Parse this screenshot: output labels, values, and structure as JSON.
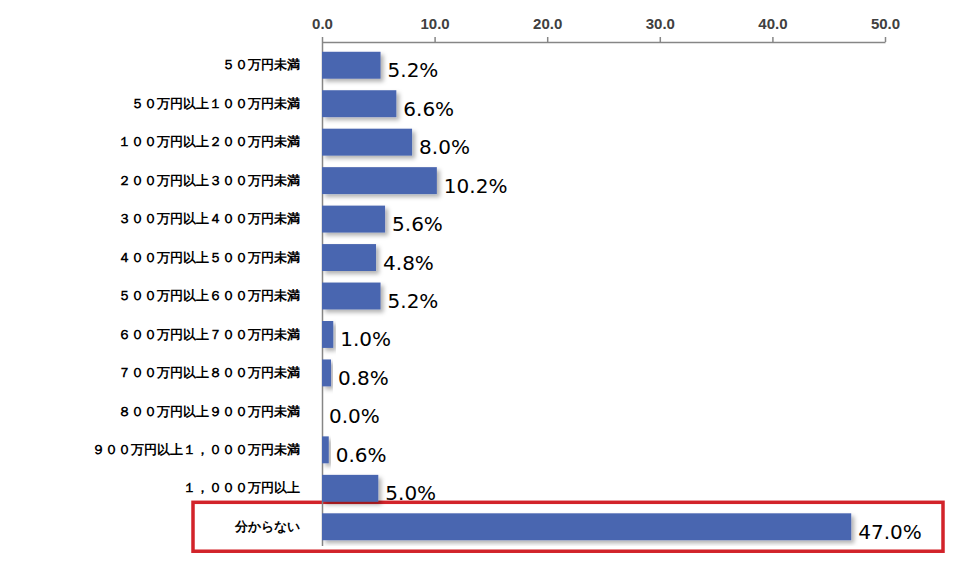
{
  "chart_data": {
    "type": "bar",
    "orientation": "horizontal",
    "categories": [
      "５０万円未満",
      "５０万円以上１００万円未満",
      "１００万円以上２００万円未満",
      "２００万円以上３００万円未満",
      "３００万円以上４００万円未満",
      "４００万円以上５００万円未満",
      "５００万円以上６００万円未満",
      "６００万円以上７００万円未満",
      "７００万円以上８００万円未満",
      "８００万円以上９００万円未満",
      "９００万円以上１，０００万円未満",
      "１，０００万円以上",
      "分からない"
    ],
    "values": [
      5.2,
      6.6,
      8.0,
      10.2,
      5.6,
      4.8,
      5.2,
      1.0,
      0.8,
      0.0,
      0.6,
      5.0,
      47.0
    ],
    "value_labels": [
      "5.2%",
      "6.6%",
      "8.0%",
      "10.2%",
      "5.6%",
      "4.8%",
      "5.2%",
      "1.0%",
      "0.8%",
      "0.0%",
      "0.6%",
      "5.0%",
      "47.0%"
    ],
    "data_labels": true,
    "color": "#4a66b0",
    "xlim": [
      0,
      50
    ],
    "xticks": [
      {
        "value": 0,
        "label": "0.0"
      },
      {
        "value": 10,
        "label": "10.0"
      },
      {
        "value": 20,
        "label": "20.0"
      },
      {
        "value": 30,
        "label": "30.0"
      },
      {
        "value": 40,
        "label": "40.0"
      },
      {
        "value": 50,
        "label": "50.0"
      }
    ],
    "grid": false
  }
}
